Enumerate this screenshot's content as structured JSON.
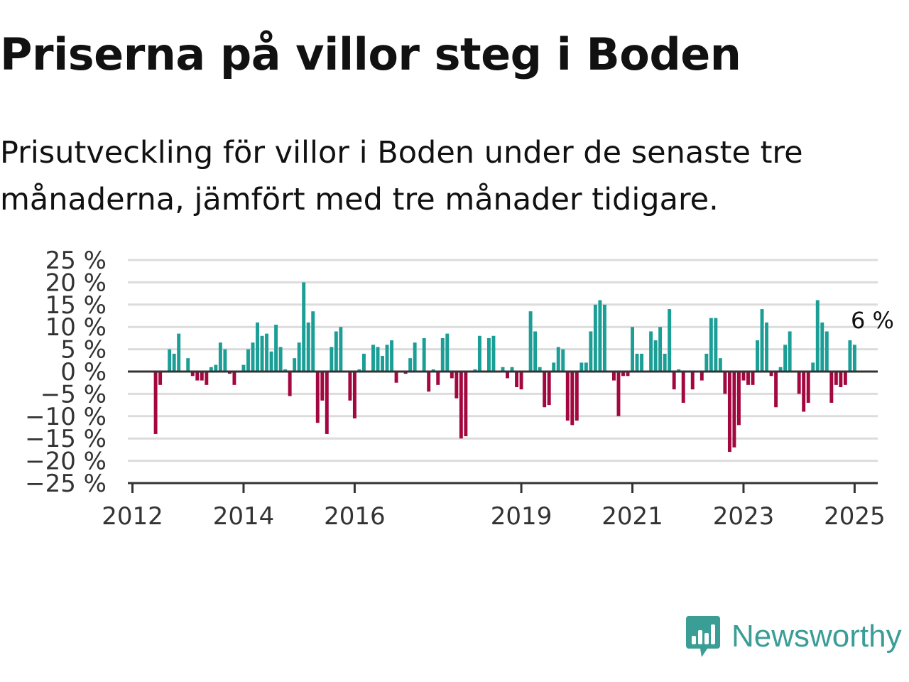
{
  "header": {
    "title": "Priserna på villor steg i Boden",
    "subtitle": "Prisutveckling för villor i Boden under de senaste tre månaderna, jämfört med tre månader tidigare."
  },
  "brand": {
    "name": "Newsworthy",
    "icon": "newsworthy-bar-chart-logo-icon",
    "color": "#3a9e96"
  },
  "chart_data": {
    "type": "bar",
    "title": "",
    "xlabel": "",
    "ylabel": "",
    "ylim": [
      -25,
      25
    ],
    "y_ticks": [
      25,
      20,
      15,
      10,
      5,
      0,
      -5,
      -10,
      -15,
      -20,
      -25
    ],
    "y_tick_labels": [
      "25 %",
      "20 %",
      "15 %",
      "10 %",
      "5 %",
      "0 %",
      "−5 %",
      "−10 %",
      "−15 %",
      "−20 %",
      "−25 %"
    ],
    "x_range": [
      "2011-12",
      "2025-06"
    ],
    "x_ticks": [
      {
        "label": "2012",
        "date": "2012-01"
      },
      {
        "label": "2014",
        "date": "2014-01"
      },
      {
        "label": "2016",
        "date": "2016-01"
      },
      {
        "label": "2019",
        "date": "2019-01"
      },
      {
        "label": "2021",
        "date": "2021-01"
      },
      {
        "label": "2023",
        "date": "2023-01"
      },
      {
        "label": "2025",
        "date": "2025-01"
      }
    ],
    "grid": true,
    "colors": {
      "positive": "#1a9e96",
      "negative": "#a3073f",
      "grid": "#dcdcdc",
      "axis": "#333333"
    },
    "annotation": {
      "text": "6 %",
      "date": "2025-03"
    },
    "series": [
      {
        "start": "2012-06",
        "values": [
          -14,
          -3,
          0,
          5,
          4,
          8.5,
          0,
          3,
          -1,
          -2,
          -2,
          -3,
          1,
          1.5,
          6.5,
          5,
          -0.5,
          -3,
          0,
          1.5,
          5,
          6.5,
          11,
          8,
          8.5,
          4.5,
          10.5,
          5.5,
          0.5,
          -5.5,
          3,
          6.5,
          20,
          11,
          13.5,
          -11.5,
          -6.5,
          -14,
          5.5,
          9,
          10,
          0,
          -6.5,
          -10.5,
          0.5,
          4,
          0,
          6,
          5.5,
          3.5,
          6,
          7,
          -2.5,
          0,
          -0.5,
          3,
          6.5,
          0,
          7.5,
          -4.5,
          0.5,
          -3,
          7.5,
          8.5,
          -1.5,
          -6,
          -15,
          -14.5,
          0,
          0.5,
          8,
          0,
          7.5,
          8,
          0,
          1,
          -1.5,
          1,
          -3.5,
          -4,
          0,
          13.5,
          9,
          1,
          -8,
          -7.5,
          2,
          5.5,
          5,
          -11,
          -12,
          -11,
          2,
          2,
          9,
          15,
          16,
          15,
          0,
          -2,
          -10,
          -1,
          -1,
          10,
          4,
          4,
          0,
          9,
          7,
          10,
          4,
          14,
          -4,
          0.5,
          -7,
          0,
          -4,
          0,
          -2,
          4,
          12,
          12,
          3,
          -5,
          -18,
          -17,
          -12,
          -2,
          -3,
          -3,
          7,
          14,
          11,
          -1,
          -8,
          1,
          6,
          9,
          0,
          -5,
          -9,
          -7,
          2,
          16,
          11,
          9,
          -7,
          -3,
          -3.5,
          -3,
          7,
          6
        ]
      }
    ]
  }
}
